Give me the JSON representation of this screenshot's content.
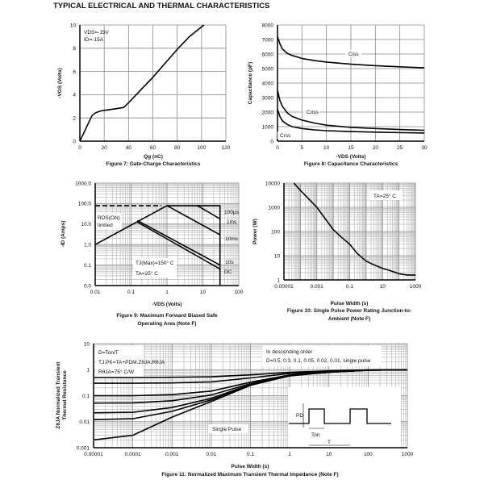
{
  "page_title": "TYPICAL ELECTRICAL AND THERMAL CHARACTERISTICS",
  "chart_data": [
    {
      "type": "line",
      "caption": [
        "Figure 7: Gate-Charge Characteristics"
      ],
      "xlabel": "Qg (nC)",
      "ylabel": "-VGS (Volts)",
      "xscale": "linear",
      "yscale": "linear",
      "xlim": [
        0,
        120
      ],
      "ylim": [
        0,
        10
      ],
      "xticks": [
        0,
        20,
        40,
        60,
        80,
        100,
        120
      ],
      "yticks": [
        0,
        2,
        4,
        6,
        8,
        10
      ],
      "xtick_labels": [
        "0",
        "20",
        "40",
        "60",
        "80",
        "100",
        "120"
      ],
      "ytick_labels": [
        "0",
        "2",
        "4",
        "6",
        "8",
        "10"
      ],
      "grid": true,
      "annotations": [
        "VDS=-15V",
        "ID=-15A"
      ],
      "series": [
        {
          "points": [
            [
              0,
              0
            ],
            [
              5,
              1.1
            ],
            [
              10,
              2.2
            ],
            [
              13,
              2.45
            ],
            [
              17,
              2.6
            ],
            [
              22,
              2.68
            ],
            [
              30,
              2.8
            ],
            [
              36,
              2.9
            ],
            [
              40,
              3.3
            ],
            [
              50,
              4.4
            ],
            [
              60,
              5.5
            ],
            [
              70,
              6.7
            ],
            [
              80,
              7.9
            ],
            [
              90,
              9.0
            ],
            [
              102,
              10
            ]
          ]
        }
      ]
    },
    {
      "type": "line",
      "caption": [
        "Figure 8: Capacitance Characteristics"
      ],
      "xlabel": "-VDS (Volts)",
      "ylabel": "Capacitance (pF)",
      "xscale": "linear",
      "yscale": "linear",
      "xlim": [
        0,
        30
      ],
      "ylim": [
        0,
        8000
      ],
      "xticks": [
        0,
        5,
        10,
        15,
        20,
        25,
        30
      ],
      "yticks": [
        0,
        1000,
        2000,
        3000,
        4000,
        5000,
        6000,
        7000,
        8000
      ],
      "xtick_labels": [
        "0",
        "5",
        "10",
        "15",
        "20",
        "25",
        "30"
      ],
      "ytick_labels": [
        "0",
        "1000",
        "2000",
        "3000",
        "4000",
        "5000",
        "6000",
        "7000",
        "8000"
      ],
      "grid": true,
      "annotations": [
        "Ciss",
        "Coss",
        "Crss"
      ],
      "series": [
        {
          "name": "Ciss",
          "points": [
            [
              0,
              7200
            ],
            [
              0.5,
              6700
            ],
            [
              1,
              6350
            ],
            [
              2,
              6050
            ],
            [
              3,
              5900
            ],
            [
              5,
              5700
            ],
            [
              7.5,
              5550
            ],
            [
              10,
              5450
            ],
            [
              15,
              5300
            ],
            [
              20,
              5200
            ],
            [
              25,
              5120
            ],
            [
              30,
              5050
            ]
          ]
        },
        {
          "name": "Coss",
          "points": [
            [
              0,
              3500
            ],
            [
              0.5,
              2800
            ],
            [
              1,
              2400
            ],
            [
              2,
              1950
            ],
            [
              3,
              1700
            ],
            [
              5,
              1450
            ],
            [
              7.5,
              1250
            ],
            [
              10,
              1100
            ],
            [
              15,
              950
            ],
            [
              20,
              870
            ],
            [
              25,
              800
            ],
            [
              30,
              750
            ]
          ]
        },
        {
          "name": "Crss",
          "points": [
            [
              0,
              2200
            ],
            [
              0.5,
              1700
            ],
            [
              1,
              1400
            ],
            [
              2,
              1150
            ],
            [
              3,
              1000
            ],
            [
              5,
              870
            ],
            [
              7.5,
              780
            ],
            [
              10,
              720
            ],
            [
              15,
              660
            ],
            [
              20,
              620
            ],
            [
              25,
              590
            ],
            [
              30,
              560
            ]
          ]
        }
      ]
    },
    {
      "type": "line",
      "caption": [
        "Figure 9: Maximum Forward Biased Safe",
        "Operating Area (Note F)"
      ],
      "xlabel": "-VDS (Volts)",
      "ylabel": "-ID (Amps)",
      "xscale": "log",
      "yscale": "log",
      "xlim": [
        0.01,
        100
      ],
      "ylim": [
        0.01,
        1000
      ],
      "xticks": [
        0.01,
        0.1,
        1,
        10,
        100
      ],
      "yticks": [
        0.01,
        0.1,
        1,
        10,
        100,
        1000
      ],
      "xtick_labels": [
        "0.01",
        "0.1",
        "1",
        "10",
        "100"
      ],
      "ytick_labels": [
        "0.0",
        "0.1",
        "1.0",
        "10.0",
        "100.0",
        "1000.0"
      ],
      "grid": true,
      "annotations": [
        "RDS(ON)",
        "limited",
        "TJ(Max)=150° C",
        "TA=25° C",
        "100µs",
        "1ms",
        "10ms",
        "10s",
        "DC"
      ],
      "series": [
        {
          "name": "RDS(ON) limited",
          "points": [
            [
              0.01,
              1
            ],
            [
              1,
              80
            ]
          ]
        },
        {
          "name": "RDS(ON) limit extension",
          "dashed": true,
          "points": [
            [
              0.01,
              80
            ],
            [
              0.7,
              80
            ]
          ]
        },
        {
          "name": "100µs",
          "points": [
            [
              1,
              80
            ],
            [
              30,
              80
            ],
            [
              30,
              0.01
            ]
          ]
        },
        {
          "name": "1ms",
          "points": [
            [
              7,
              80
            ],
            [
              30,
              18
            ]
          ]
        },
        {
          "name": "10ms",
          "points": [
            [
              1,
              80
            ],
            [
              30,
              3
            ]
          ]
        },
        {
          "name": "10s",
          "points": [
            [
              0.15,
              15
            ],
            [
              30,
              0.1
            ]
          ]
        },
        {
          "name": "DC",
          "points": [
            [
              0.15,
              12.5
            ],
            [
              30,
              0.065
            ]
          ]
        }
      ]
    },
    {
      "type": "line",
      "caption": [
        "Figure 10: Single Pulse Power Rating Junction-to-",
        "Ambient (Note F)"
      ],
      "xlabel": "Pulse Width (s)",
      "ylabel": "Power (W)",
      "xscale": "log",
      "yscale": "log",
      "xlim": [
        1e-05,
        1000
      ],
      "ylim": [
        1,
        10000
      ],
      "xticks": [
        1e-05,
        0.001,
        0.1,
        10,
        1000
      ],
      "yticks": [
        1,
        10,
        100,
        1000,
        10000
      ],
      "xtick_labels": [
        "0.00001",
        "0.001",
        "0.1",
        "10",
        "1000"
      ],
      "ytick_labels": [
        "1",
        "10",
        "100",
        "1000",
        "10000"
      ],
      "grid": true,
      "annotations": [
        "TA=25° C"
      ],
      "series": [
        {
          "points": [
            [
              4e-05,
              10000
            ],
            [
              0.0001,
              5000
            ],
            [
              0.001,
              1000
            ],
            [
              0.01,
              120
            ],
            [
              0.03,
              60
            ],
            [
              0.1,
              30
            ],
            [
              0.3,
              12
            ],
            [
              1,
              6
            ],
            [
              3,
              4.2
            ],
            [
              10,
              3
            ],
            [
              30,
              2.4
            ],
            [
              100,
              1.8
            ],
            [
              300,
              1.6
            ],
            [
              1000,
              1.6
            ]
          ]
        }
      ]
    },
    {
      "type": "line",
      "caption": [
        "Figure 11: Normalized Maximum Transient Thermal Impedance (Note F)"
      ],
      "xlabel": "Pulse Width (s)",
      "ylabel": [
        "ZθJA Normalized Transient",
        "Thermal Resistance"
      ],
      "xscale": "log",
      "yscale": "log",
      "xlim": [
        1e-05,
        1000
      ],
      "ylim": [
        0.001,
        10
      ],
      "xticks": [
        1e-05,
        0.0001,
        0.001,
        0.01,
        0.1,
        1,
        10,
        100,
        1000
      ],
      "yticks": [
        0.001,
        0.01,
        0.1,
        1,
        10
      ],
      "xtick_labels": [
        "0.00001",
        "0.0001",
        "0.001",
        "0.01",
        "0.1",
        "1",
        "10",
        "100",
        "1000"
      ],
      "ytick_labels": [
        "0.001",
        "0.01",
        "0.1",
        "1",
        "10"
      ],
      "grid": true,
      "annotations": [
        "D=Ton/T",
        "TJ,PK=TA+PDM.ZθJA.RθJA",
        "RθJA=75° C/W",
        "In descending order",
        "D=0.5, 0.3, 0.1, 0.05, 0.02, 0.01, single pulse",
        "Single Pulse",
        "PD",
        "Ton",
        "T"
      ],
      "x": [
        1e-05,
        0.0001,
        0.001,
        0.01,
        0.1,
        1,
        10,
        100,
        1000
      ],
      "series": [
        {
          "name": "D=0.5",
          "values": [
            0.5,
            0.5,
            0.51,
            0.53,
            0.63,
            0.79,
            0.9,
            0.98,
            1.0
          ]
        },
        {
          "name": "D=0.3",
          "values": [
            0.3,
            0.3,
            0.31,
            0.34,
            0.48,
            0.71,
            0.86,
            0.97,
            1.0
          ]
        },
        {
          "name": "D=0.1",
          "values": [
            0.1,
            0.1,
            0.11,
            0.15,
            0.33,
            0.62,
            0.82,
            0.96,
            1.0
          ]
        },
        {
          "name": "D=0.05",
          "values": [
            0.052,
            0.053,
            0.064,
            0.107,
            0.29,
            0.6,
            0.81,
            0.95,
            1.0
          ]
        },
        {
          "name": "D=0.02",
          "values": [
            0.022,
            0.023,
            0.035,
            0.079,
            0.27,
            0.59,
            0.8,
            0.95,
            1.0
          ]
        },
        {
          "name": "D=0.01",
          "values": [
            0.012,
            0.013,
            0.025,
            0.069,
            0.26,
            0.58,
            0.8,
            0.95,
            1.0
          ]
        },
        {
          "name": "single pulse",
          "values": [
            0.002,
            0.003,
            0.015,
            0.06,
            0.25,
            0.58,
            0.8,
            0.95,
            1.0
          ]
        }
      ]
    }
  ]
}
